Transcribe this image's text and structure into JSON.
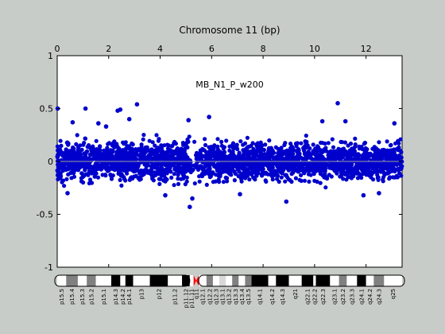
{
  "chart_data": {
    "type": "scatter",
    "title": "Chromosome 11 (bp)",
    "annotation": "MB_N1_P_w200",
    "xlim": [
      0,
      13.4
    ],
    "ylim": [
      -1,
      1
    ],
    "x_ticks": [
      "0",
      "2",
      "4",
      "6",
      "8",
      "10",
      "12"
    ],
    "x_tick_values": [
      0,
      2,
      4,
      6,
      8,
      10,
      12
    ],
    "y_ticks": [
      "1",
      "0.5",
      "0",
      "-0.5",
      "-1"
    ],
    "y_tick_values": [
      1,
      0.5,
      0,
      -0.5,
      -1
    ],
    "zero_line": true,
    "point_color": "#0000cc",
    "background": "#ffffff",
    "dense_band": {
      "x_range": [
        0,
        13.4
      ],
      "y_range": [
        -0.28,
        0.28
      ],
      "gap_x": [
        5.2,
        5.4
      ]
    },
    "outliers": [
      {
        "x": 0.02,
        "y": 0.5
      },
      {
        "x": 1.1,
        "y": 0.5
      },
      {
        "x": 2.35,
        "y": 0.48
      },
      {
        "x": 2.45,
        "y": 0.49
      },
      {
        "x": 3.1,
        "y": 0.54
      },
      {
        "x": 10.9,
        "y": 0.55
      },
      {
        "x": 0.6,
        "y": 0.37
      },
      {
        "x": 1.6,
        "y": 0.36
      },
      {
        "x": 2.8,
        "y": 0.4
      },
      {
        "x": 5.1,
        "y": 0.39
      },
      {
        "x": 5.9,
        "y": 0.42
      },
      {
        "x": 10.3,
        "y": 0.38
      },
      {
        "x": 11.2,
        "y": 0.38
      },
      {
        "x": 13.1,
        "y": 0.36
      },
      {
        "x": 1.9,
        "y": 0.33
      },
      {
        "x": 5.15,
        "y": -0.43
      },
      {
        "x": 5.25,
        "y": -0.35
      },
      {
        "x": 8.9,
        "y": -0.38
      },
      {
        "x": 4.2,
        "y": -0.32
      },
      {
        "x": 0.4,
        "y": -0.3
      },
      {
        "x": 11.9,
        "y": -0.32
      },
      {
        "x": 12.5,
        "y": -0.3
      },
      {
        "x": 7.1,
        "y": -0.31
      }
    ]
  },
  "ideogram": {
    "bands": [
      {
        "label": "p15.5",
        "end": 0.35,
        "color": "#ffffff"
      },
      {
        "label": "p15.4",
        "end": 0.8,
        "color": "#808080"
      },
      {
        "label": "p15.3",
        "end": 1.15,
        "color": "#ffffff"
      },
      {
        "label": "p15.2",
        "end": 1.5,
        "color": "#808080"
      },
      {
        "label": "p15.1",
        "end": 2.1,
        "color": "#ffffff"
      },
      {
        "label": "p14.3",
        "end": 2.45,
        "color": "#000000"
      },
      {
        "label": "p14.2",
        "end": 2.65,
        "color": "#ffffff"
      },
      {
        "label": "p14.1",
        "end": 2.95,
        "color": "#000000"
      },
      {
        "label": "p13",
        "end": 3.6,
        "color": "#ffffff"
      },
      {
        "label": "p12",
        "end": 4.3,
        "color": "#000000"
      },
      {
        "label": "p11.2",
        "end": 4.85,
        "color": "#ffffff"
      },
      {
        "label": "p11.12",
        "end": 5.15,
        "color": "#000000"
      },
      {
        "label": "p11.11",
        "end": 5.3,
        "color": "#ffffff"
      },
      {
        "label": "q11",
        "end": 5.5,
        "color": "#ff0000"
      },
      {
        "label": "q12.1",
        "end": 5.8,
        "color": "#ffffff"
      },
      {
        "label": "q12.2",
        "end": 6.05,
        "color": "#808080"
      },
      {
        "label": "q12.3",
        "end": 6.3,
        "color": "#ffffff"
      },
      {
        "label": "q13.1",
        "end": 6.55,
        "color": "#d9d9d9"
      },
      {
        "label": "q13.2",
        "end": 6.8,
        "color": "#ffffff"
      },
      {
        "label": "q13.3",
        "end": 7.05,
        "color": "#808080"
      },
      {
        "label": "q13.4",
        "end": 7.3,
        "color": "#ffffff"
      },
      {
        "label": "q13.5",
        "end": 7.55,
        "color": "#808080"
      },
      {
        "label": "q14.1",
        "end": 8.2,
        "color": "#000000"
      },
      {
        "label": "q14.2",
        "end": 8.5,
        "color": "#ffffff"
      },
      {
        "label": "q14.3",
        "end": 9.0,
        "color": "#000000"
      },
      {
        "label": "q21",
        "end": 9.5,
        "color": "#ffffff"
      },
      {
        "label": "q22.1",
        "end": 9.95,
        "color": "#000000"
      },
      {
        "label": "q22.2",
        "end": 10.05,
        "color": "#ffffff"
      },
      {
        "label": "q22.3",
        "end": 10.6,
        "color": "#000000"
      },
      {
        "label": "q23.1",
        "end": 10.95,
        "color": "#ffffff"
      },
      {
        "label": "q23.2",
        "end": 11.25,
        "color": "#808080"
      },
      {
        "label": "q23.3",
        "end": 11.65,
        "color": "#ffffff"
      },
      {
        "label": "q24.1",
        "end": 12.0,
        "color": "#000000"
      },
      {
        "label": "q24.2",
        "end": 12.3,
        "color": "#ffffff"
      },
      {
        "label": "q24.3",
        "end": 12.7,
        "color": "#808080"
      },
      {
        "label": "q25",
        "end": 13.4,
        "color": "#ffffff"
      }
    ]
  }
}
